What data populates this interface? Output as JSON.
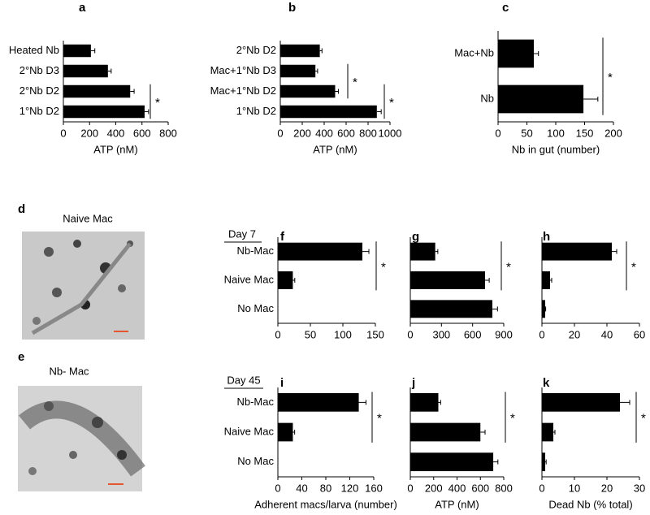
{
  "chart_data": [
    {
      "type": "bar",
      "panel": "a",
      "categories": [
        "Heated Nb",
        "2°Nb D3",
        "2°Nb D2",
        "1°Nb D2"
      ],
      "values": [
        210,
        340,
        510,
        620
      ],
      "errors": [
        30,
        25,
        30,
        30
      ],
      "color": "#000000",
      "xlabel": "ATP (nM)",
      "xlim": [
        0,
        800
      ],
      "xticks": [
        0,
        200,
        400,
        600,
        800
      ],
      "annotations": [
        "*"
      ]
    },
    {
      "type": "bar",
      "panel": "b",
      "categories": [
        "2°Nb D2",
        "Mac+1°Nb D3",
        "Mac+1°Nb D2",
        "1°Nb D2"
      ],
      "values": [
        360,
        320,
        500,
        880
      ],
      "errors": [
        20,
        20,
        30,
        40
      ],
      "color": "#000000",
      "xlabel": "ATP (nM)",
      "xlim": [
        0,
        1000
      ],
      "xticks": [
        0,
        200,
        400,
        600,
        800,
        1000
      ],
      "annotations": [
        "*",
        "*"
      ]
    },
    {
      "type": "bar",
      "panel": "c",
      "categories": [
        "Mac+Nb",
        "Nb"
      ],
      "values": [
        62,
        148
      ],
      "errors": [
        8,
        25
      ],
      "color": "#000000",
      "xlabel": "Nb in gut (number)",
      "xlim": [
        0,
        200
      ],
      "xticks": [
        0,
        50,
        100,
        150,
        200
      ],
      "annotations": [
        "*"
      ]
    },
    {
      "type": "bar",
      "panel": "f",
      "categories": [
        "Nb-Mac",
        "Naive Mac",
        "No Mac"
      ],
      "values": [
        130,
        23,
        0
      ],
      "errors": [
        10,
        3,
        0
      ],
      "color": "#000000",
      "xlim": [
        0,
        150
      ],
      "xticks": [
        0,
        50,
        100,
        150
      ],
      "annotations": [
        "*"
      ]
    },
    {
      "type": "bar",
      "panel": "g",
      "values": [
        240,
        720,
        790
      ],
      "errors": [
        25,
        40,
        50
      ],
      "color": "#000000",
      "xlim": [
        0,
        900
      ],
      "xticks": [
        0,
        300,
        600,
        900
      ],
      "annotations": [
        "*"
      ]
    },
    {
      "type": "bar",
      "panel": "h",
      "values": [
        43,
        5,
        2
      ],
      "errors": [
        3,
        1,
        0.3
      ],
      "color": "#000000",
      "xlim": [
        0,
        60
      ],
      "xticks": [
        0,
        20,
        40,
        60
      ],
      "annotations": [
        "*"
      ]
    },
    {
      "type": "bar",
      "panel": "i",
      "categories": [
        "Nb-Mac",
        "Naive Mac",
        "No Mac"
      ],
      "values": [
        135,
        25,
        0
      ],
      "errors": [
        12,
        3,
        0
      ],
      "color": "#000000",
      "xlabel": "Adherent macs/larva (number)",
      "xlim": [
        0,
        160
      ],
      "xticks": [
        0,
        40,
        80,
        120,
        160
      ],
      "annotations": [
        "*"
      ]
    },
    {
      "type": "bar",
      "panel": "j",
      "values": [
        240,
        600,
        710
      ],
      "errors": [
        20,
        40,
        40
      ],
      "color": "#000000",
      "xlabel": "ATP (nM)",
      "xlim": [
        0,
        800
      ],
      "xticks": [
        0,
        200,
        400,
        600,
        800
      ],
      "annotations": [
        "*"
      ]
    },
    {
      "type": "bar",
      "panel": "k",
      "values": [
        24,
        3.5,
        1
      ],
      "errors": [
        3,
        0.5,
        0.3
      ],
      "color": "#000000",
      "xlabel": "Dead Nb (% total)",
      "xlim": [
        0,
        30
      ],
      "xticks": [
        0,
        10,
        20,
        30
      ],
      "annotations": [
        "*"
      ]
    }
  ],
  "images": [
    {
      "panel": "d",
      "label": "Naive Mac"
    },
    {
      "panel": "e",
      "label": "Nb- Mac"
    }
  ],
  "day_labels": [
    "Day 7",
    "Day 45"
  ]
}
